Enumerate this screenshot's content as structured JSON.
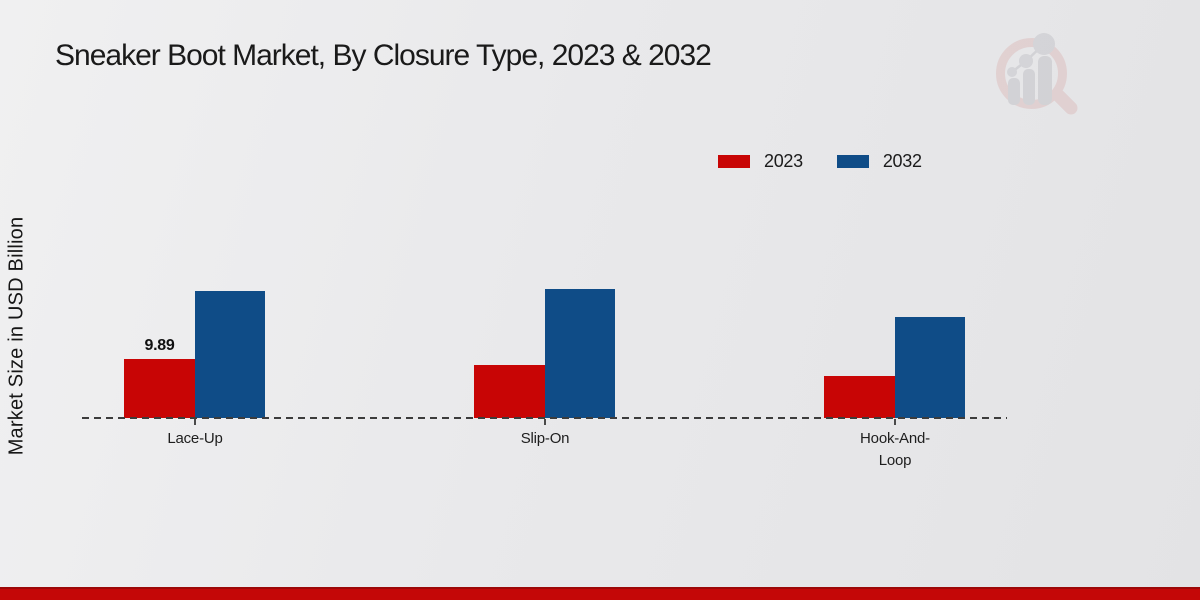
{
  "title": "Sneaker Boot Market, By Closure Type, 2023 & 2032",
  "y_axis_label": "Market Size in USD Billion",
  "legend": [
    {
      "label": "2023",
      "color": "#c80505"
    },
    {
      "label": "2032",
      "color": "#0f4c87"
    }
  ],
  "colors": {
    "bar_2023": "#c80505",
    "bar_2032": "#0f4c87",
    "footer_strip": "#c40707",
    "baseline": "#3c3c3c",
    "background": "#e9e9eb"
  },
  "watermark_icon": "market-research-magnifier-bars-logo",
  "chart_data": {
    "type": "bar",
    "title": "Sneaker Boot Market, By Closure Type, 2023 & 2032",
    "categories": [
      "Lace-Up",
      "Slip-On",
      "Hook-And-Loop"
    ],
    "series": [
      {
        "name": "2023",
        "color": "#c80505",
        "values": [
          9.89,
          8.9,
          7.0
        ],
        "bar_labels": [
          "9.89",
          "",
          ""
        ]
      },
      {
        "name": "2032",
        "color": "#0f4c87",
        "values": [
          21.3,
          21.6,
          16.9
        ],
        "bar_labels": [
          "",
          "",
          ""
        ]
      }
    ],
    "xlabel": "",
    "ylabel": "Market Size in USD Billion",
    "ylim": [
      0,
      25
    ],
    "grid": false,
    "axis_style": "dashed-baseline-only",
    "legend_position": "top-right",
    "value_label_note": "only the 2023 Lace-Up bar shows its value (9.89)"
  }
}
